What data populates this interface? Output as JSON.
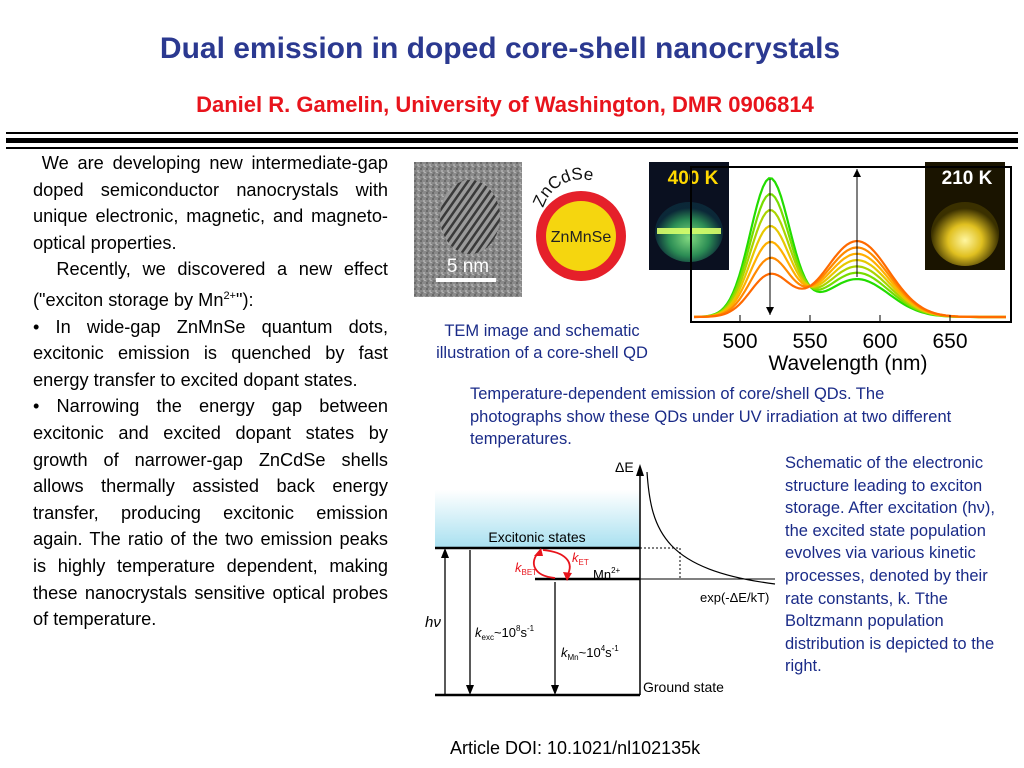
{
  "title": "Dual emission in doped core-shell nanocrystals",
  "subtitle": "Daniel R. Gamelin, University of Washington, DMR 0906814",
  "body": {
    "p1": "We are developing new intermediate-gap doped semiconductor nanocrystals with unique electronic, magnetic, and magneto-optical properties.",
    "p2_prefix": "Recently, we discovered a new effect (\"exciton storage by Mn",
    "p2_sup": "2+",
    "p2_suffix": "\"):",
    "bullet1": "In wide-gap ZnMnSe quantum dots, excitonic emission is quenched by fast energy transfer to excited dopant states.",
    "bullet2": "Narrowing the energy gap between excitonic and excited dopant states by growth of narrower-gap ZnCdSe shells allows thermally assisted back energy transfer, producing excitonic emission again. The ratio of the two emission peaks is highly temperature dependent, making these nanocrystals sensitive optical probes of temperature."
  },
  "tem": {
    "scale_label": "5 nm",
    "caption": "TEM image and schematic illustration of a core-shell QD"
  },
  "schematic_qd": {
    "shell_label": "ZnCdSe",
    "core_label": "ZnMnSe",
    "shell_color": "#e5202a",
    "core_color": "#f5d60f"
  },
  "photos": {
    "left_label": "400 K",
    "right_label": "210 K"
  },
  "spectrum": {
    "x_ticks": [
      "500",
      "550",
      "600",
      "650"
    ],
    "x_label": "Wavelength (nm)",
    "caption": "Temperature-dependent emission of core/shell QDs. The photographs show these QDs under UV irradiation at two different temperatures."
  },
  "energy_diagram": {
    "delta_e_label": "ΔE",
    "excitonic_states": "Excitonic states",
    "k_bet": "k",
    "k_bet_sub": "BET",
    "k_et": "k",
    "k_et_sub": "ET",
    "mn_label": "Mn",
    "mn_sup": "2+",
    "hv_label": "hν",
    "k_exc": "k",
    "k_exc_sub": "exc",
    "k_exc_value": "~10",
    "k_exc_exp": "8",
    "k_mn": "k",
    "k_mn_sub": "Mn",
    "k_mn_value": "~10",
    "k_mn_exp": "4",
    "per_s": "s",
    "per_s_exp": "-1",
    "boltzmann": "exp(-ΔE/kT)",
    "ground_state": "Ground state",
    "caption": "Schematic of the electronic structure leading to exciton storage. After excitation (hν), the excited state population evolves via various kinetic processes, denoted by their rate constants, k. Tthe Boltzmann population distribution is depicted to the right."
  },
  "doi": "Article DOI: 10.1021/nl102135k"
}
